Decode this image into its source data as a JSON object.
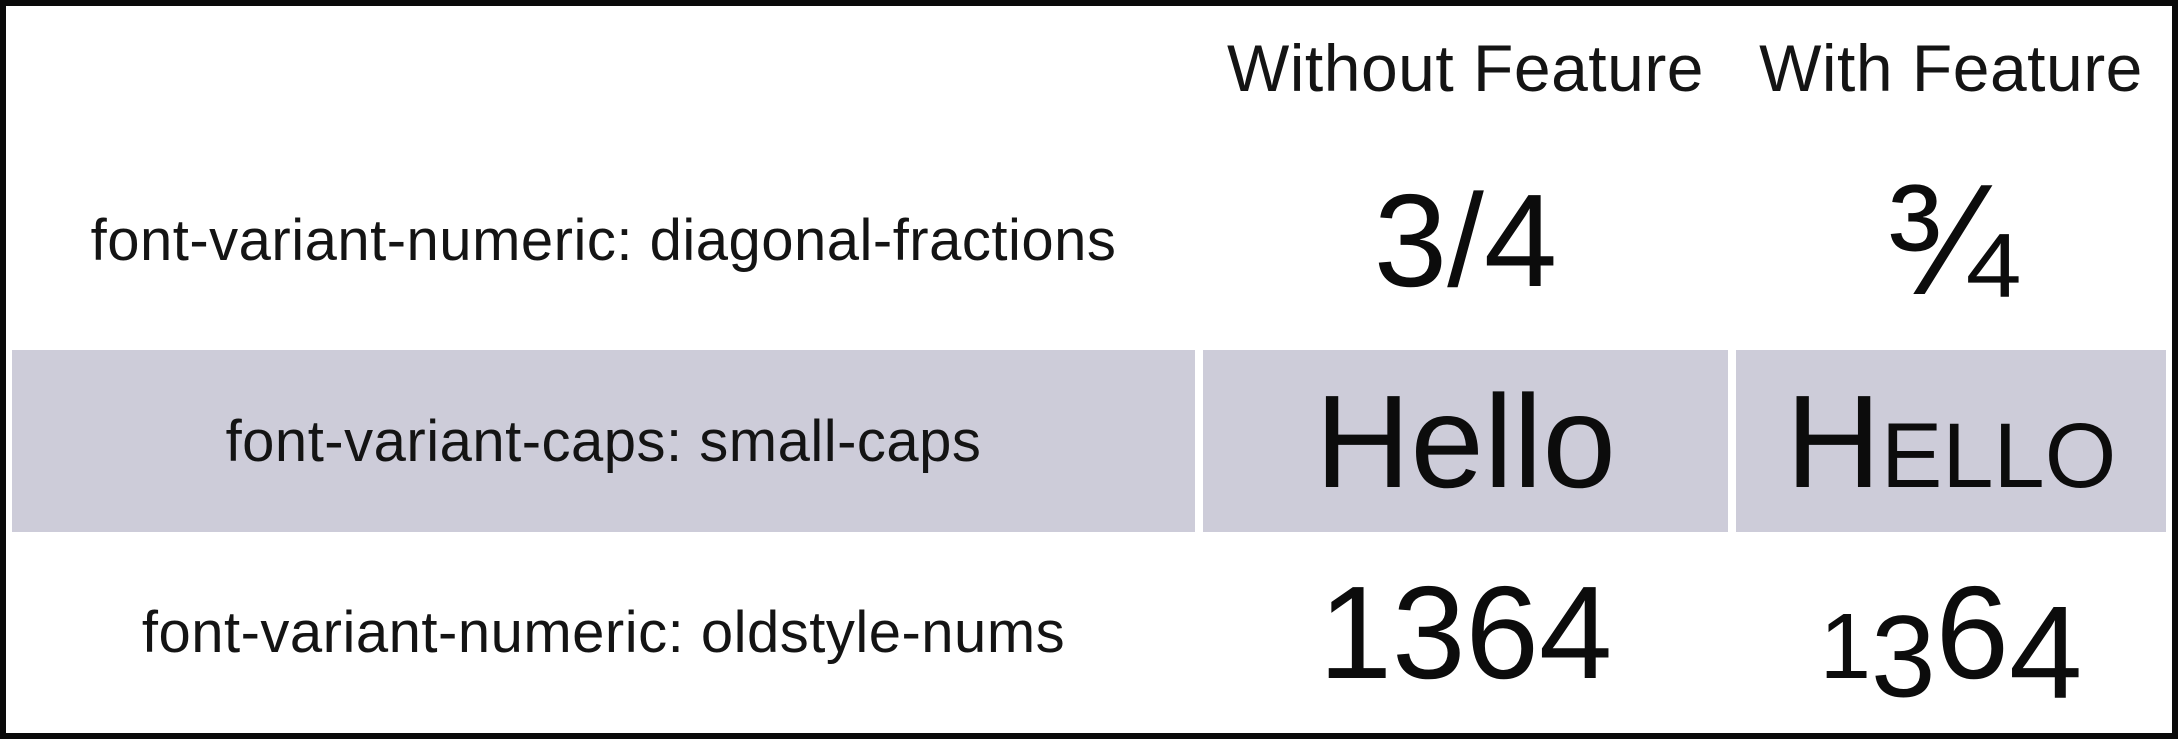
{
  "table": {
    "header": {
      "without_feature": "Without Feature",
      "with_feature": "With Feature"
    },
    "rows": [
      {
        "label": "font-variant-numeric: diagonal-fractions",
        "without": "3/4",
        "with": "¾",
        "variant": "diagonal-fractions"
      },
      {
        "label": "font-variant-caps: small-caps",
        "without": "Hello",
        "with": "Hello",
        "variant": "small-caps",
        "highlighted": true
      },
      {
        "label": "font-variant-numeric: oldstyle-nums",
        "without": "1364",
        "with": "1364",
        "variant": "oldstyle-nums"
      }
    ],
    "colors": {
      "highlight_row_background": "#cdccd9",
      "frame_border": "#0a0a0a",
      "text": "#141414"
    }
  }
}
